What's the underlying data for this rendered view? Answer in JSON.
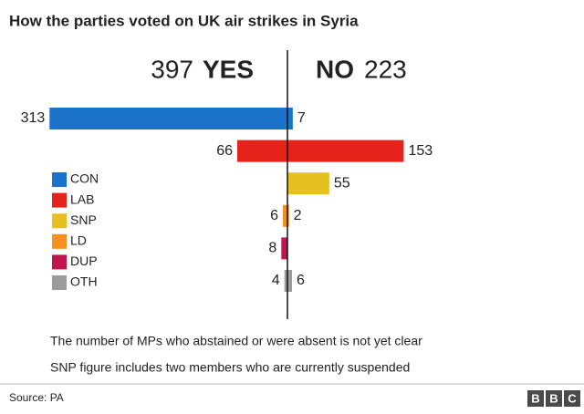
{
  "chart_data": {
    "type": "diverging-bar",
    "title": "How the parties voted on UK air strikes in Syria",
    "yes_total": 397,
    "yes_label": "YES",
    "no_label": "NO",
    "no_total": 223,
    "categories": [
      "CON",
      "LAB",
      "SNP",
      "LD",
      "DUP",
      "OTH"
    ],
    "colors": [
      "#1a72c9",
      "#e5231a",
      "#e6c01f",
      "#f5901e",
      "#c0164d",
      "#9c9c9c"
    ],
    "series": [
      {
        "name": "YES",
        "values": [
          313,
          66,
          null,
          6,
          8,
          4
        ]
      },
      {
        "name": "NO",
        "values": [
          7,
          153,
          55,
          2,
          null,
          6
        ]
      }
    ],
    "notes": [
      "The number of MPs who abstained or were absent is not yet clear",
      "SNP figure includes two members who are currently suspended"
    ],
    "source": "Source: PA",
    "logo": [
      "B",
      "B",
      "C"
    ]
  }
}
